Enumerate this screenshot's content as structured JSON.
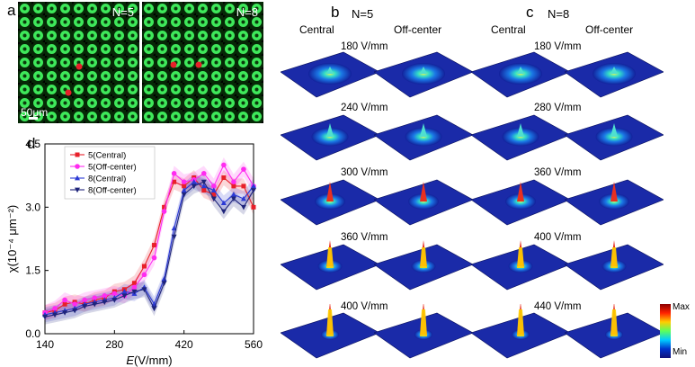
{
  "panel_letters": {
    "a": "a",
    "b": "b",
    "c": "c",
    "d": "d"
  },
  "micrographs": [
    {
      "label": "N=5",
      "scale_bar": "50μm"
    },
    {
      "label": "N=8"
    }
  ],
  "panel_b": {
    "title": "N=5",
    "col1": "Central",
    "col2": "Off-center",
    "fields": [
      "180 V/mm",
      "240 V/mm",
      "300 V/mm",
      "360 V/mm",
      "400 V/mm"
    ]
  },
  "panel_c": {
    "title": "N=8",
    "col1": "Central",
    "col2": "Off-center",
    "fields": [
      "180 V/mm",
      "280 V/mm",
      "360 V/mm",
      "400 V/mm",
      "440 V/mm"
    ]
  },
  "colorbar": {
    "max_label": "Max",
    "min_label": "Min"
  },
  "colors": {
    "red": "#e8202a",
    "magenta": "#ff2bf0",
    "blue": "#2b39d4",
    "navy": "#1e247a",
    "cell": "#3ee85a"
  },
  "chart_data": {
    "type": "line",
    "xlabel_italic": "E",
    "xlabel_rest": "(V/mm)",
    "ylabel": "χ(10⁻⁴ μm⁻²)",
    "xlim": [
      140,
      560
    ],
    "ylim": [
      0.0,
      4.5
    ],
    "xticks": [
      "140",
      "280",
      "420",
      "560"
    ],
    "yticks": [
      "0.0",
      "1.5",
      "3.0",
      "4.5"
    ],
    "series": [
      {
        "name": "5(Central)",
        "color": "#e8202a",
        "marker": "square",
        "x": [
          140,
          160,
          180,
          200,
          220,
          240,
          260,
          280,
          300,
          320,
          340,
          360,
          380,
          400,
          420,
          440,
          460,
          480,
          500,
          520,
          540,
          560
        ],
        "y": [
          0.5,
          0.55,
          0.7,
          0.75,
          0.7,
          0.8,
          0.85,
          1.0,
          1.05,
          1.2,
          1.6,
          2.1,
          3.0,
          3.6,
          3.5,
          3.7,
          3.4,
          3.3,
          3.7,
          3.5,
          3.5,
          3.0
        ]
      },
      {
        "name": "5(Off-center)",
        "color": "#ff2bf0",
        "marker": "circle",
        "x": [
          140,
          160,
          180,
          200,
          220,
          240,
          260,
          280,
          300,
          320,
          340,
          360,
          380,
          400,
          420,
          440,
          460,
          480,
          500,
          520,
          540,
          560
        ],
        "y": [
          0.5,
          0.6,
          0.8,
          0.7,
          0.8,
          0.85,
          0.9,
          0.95,
          0.9,
          1.1,
          1.4,
          1.8,
          2.9,
          3.8,
          3.6,
          3.65,
          3.8,
          3.5,
          4.0,
          3.6,
          3.9,
          3.5
        ]
      },
      {
        "name": "8(Central)",
        "color": "#2b39d4",
        "marker": "triangle-up",
        "x": [
          140,
          160,
          180,
          200,
          220,
          240,
          260,
          280,
          300,
          320,
          340,
          360,
          380,
          400,
          420,
          440,
          460,
          480,
          500,
          520,
          540,
          560
        ],
        "y": [
          0.45,
          0.5,
          0.55,
          0.6,
          0.7,
          0.75,
          0.8,
          0.85,
          1.0,
          0.95,
          1.1,
          0.7,
          1.3,
          2.5,
          3.4,
          3.6,
          3.5,
          3.4,
          3.1,
          3.3,
          3.2,
          3.5
        ]
      },
      {
        "name": "8(Off-center)",
        "color": "#1e247a",
        "marker": "triangle-down",
        "x": [
          140,
          160,
          180,
          200,
          220,
          240,
          260,
          280,
          300,
          320,
          340,
          360,
          380,
          400,
          420,
          440,
          460,
          480,
          500,
          520,
          540,
          560
        ],
        "y": [
          0.4,
          0.45,
          0.5,
          0.55,
          0.65,
          0.7,
          0.75,
          0.8,
          0.9,
          1.0,
          1.05,
          0.6,
          1.2,
          2.3,
          3.3,
          3.5,
          3.6,
          3.2,
          2.9,
          3.2,
          3.0,
          3.4
        ]
      }
    ]
  }
}
